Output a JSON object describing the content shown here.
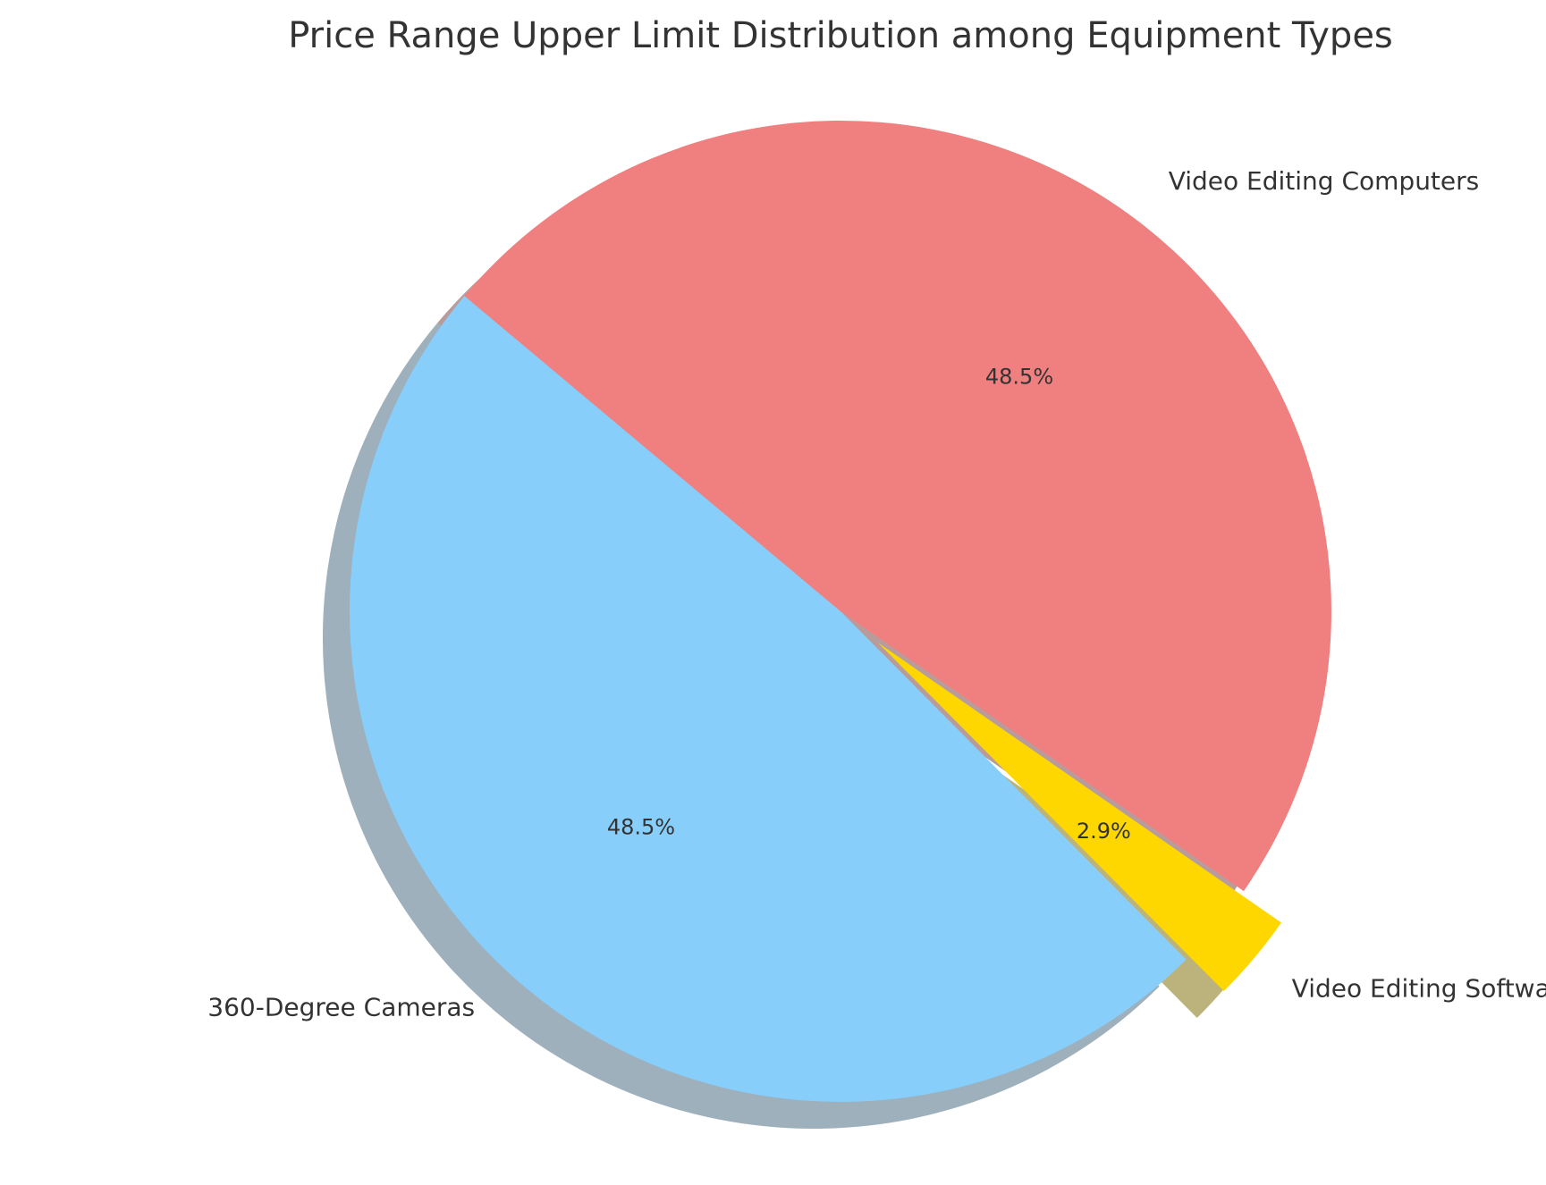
{
  "chart_data": {
    "type": "pie",
    "title": "Price Range Upper Limit Distribution among Equipment Types",
    "categories": [
      "360-Degree Cameras",
      "Video Editing Software",
      "Video Editing Computers"
    ],
    "values": [
      48.5,
      2.9,
      48.5
    ],
    "percent_labels": [
      "48.5%",
      "2.9%",
      "48.5%"
    ],
    "colors": [
      "#87CEFA",
      "#FFD700",
      "#F08080"
    ],
    "exploded": [
      false,
      true,
      false
    ],
    "shadow": true,
    "start_angle_deg": 140,
    "direction": "counterclockwise",
    "legend": "none"
  }
}
